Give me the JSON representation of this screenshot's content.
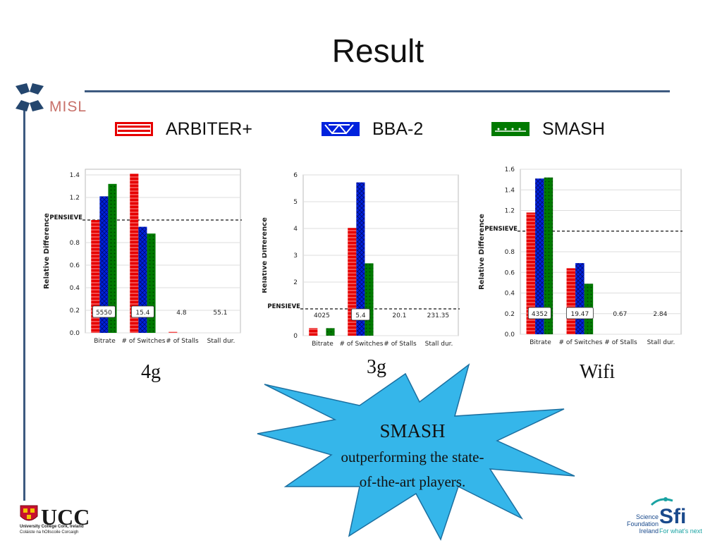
{
  "slide": {
    "title": "Result",
    "logo_misl": "MISL",
    "captions": [
      "4g",
      "3g",
      "Wifi"
    ],
    "callout": {
      "title": "SMASH",
      "line1": "outperforming the state-",
      "line2": "of-the-art players."
    },
    "footer": {
      "ucc": "UCC",
      "ucc_sub1": "University College Cork, Ireland",
      "ucc_sub2": "Coláiste na hOllscoile Corcaigh",
      "sfi_line1": "Science",
      "sfi_line2": "Foundation",
      "sfi_line3": "Ireland",
      "sfi_word": "Sfi",
      "sfi_tag": "For what's next"
    }
  },
  "legend": [
    {
      "name": "ARBITER+",
      "color": "#e60000"
    },
    {
      "name": "BBA-2",
      "color": "#0022dd"
    },
    {
      "name": "SMASH",
      "color": "#007a00"
    }
  ],
  "colors": {
    "arbiter": "#e60000",
    "bba": "#0022dd",
    "smash": "#007a00",
    "rule": "#3d5a80",
    "star": "#35b6ea"
  },
  "chart_data": [
    {
      "type": "bar",
      "caption": "4g",
      "ylabel": "Relative Difference",
      "categories": [
        "Bitrate",
        "# of Switches",
        "# of Stalls",
        "Stall dur."
      ],
      "ylim": [
        0,
        1.45
      ],
      "yticks": [
        "0.0",
        "0.2",
        "0.4",
        "0.6",
        "0.8",
        "1.2",
        "1.4"
      ],
      "ytick_values": [
        0,
        0.2,
        0.4,
        0.6,
        0.8,
        1.2,
        1.4
      ],
      "reference": {
        "label": "PENSIEVE",
        "value": 1.0
      },
      "series": [
        {
          "name": "ARBITER+",
          "values": [
            1.0,
            1.41,
            0.01,
            0.0
          ]
        },
        {
          "name": "BBA-2",
          "values": [
            1.21,
            0.94,
            0.0,
            0.0
          ]
        },
        {
          "name": "SMASH",
          "values": [
            1.32,
            0.88,
            0.0,
            0.0
          ]
        }
      ],
      "baseline_labels": [
        "5550",
        "15.4",
        "4.8",
        "55.1"
      ],
      "boxed_labels": [
        true,
        true,
        false,
        false
      ],
      "grid": true
    },
    {
      "type": "bar",
      "caption": "3g",
      "ylabel": "Relative Difference",
      "categories": [
        "Bitrate",
        "# of Switches",
        "# of Stalls",
        "Stall dur."
      ],
      "ylim": [
        0,
        6
      ],
      "yticks": [
        "0",
        "2",
        "3",
        "4",
        "5",
        "6"
      ],
      "ytick_values": [
        0,
        2,
        3,
        4,
        5,
        6
      ],
      "reference": {
        "label": "PENSIEVE",
        "value": 1.0
      },
      "series": [
        {
          "name": "ARBITER+",
          "values": [
            0.28,
            4.02,
            0.0,
            0.0
          ]
        },
        {
          "name": "BBA-2",
          "values": [
            0.0,
            5.72,
            0.0,
            0.0
          ]
        },
        {
          "name": "SMASH",
          "values": [
            0.28,
            2.7,
            0.0,
            0.0
          ]
        }
      ],
      "baseline_labels": [
        "4025",
        "5.4",
        "20.1",
        "231.35"
      ],
      "boxed_labels": [
        false,
        true,
        false,
        false
      ],
      "grid": true
    },
    {
      "type": "bar",
      "caption": "Wifi",
      "ylabel": "Relative Difference",
      "categories": [
        "Bitrate",
        "# of Switches",
        "# of Stalls",
        "Stall dur."
      ],
      "ylim": [
        0,
        1.6
      ],
      "yticks": [
        "0.0",
        "0.2",
        "0.4",
        "0.6",
        "0.8",
        "1.2",
        "1.4",
        "1.6"
      ],
      "ytick_values": [
        0,
        0.2,
        0.4,
        0.6,
        0.8,
        1.2,
        1.4,
        1.6
      ],
      "reference": {
        "label": "PENSIEVE",
        "value": 1.0
      },
      "series": [
        {
          "name": "ARBITER+",
          "values": [
            1.18,
            0.64,
            0.0,
            0.0
          ]
        },
        {
          "name": "BBA-2",
          "values": [
            1.51,
            0.69,
            0.0,
            0.0
          ]
        },
        {
          "name": "SMASH",
          "values": [
            1.52,
            0.49,
            0.0,
            0.0
          ]
        }
      ],
      "baseline_labels": [
        "4352",
        "19.47",
        "0.67",
        "2.84"
      ],
      "boxed_labels": [
        true,
        true,
        false,
        false
      ],
      "grid": true
    }
  ]
}
